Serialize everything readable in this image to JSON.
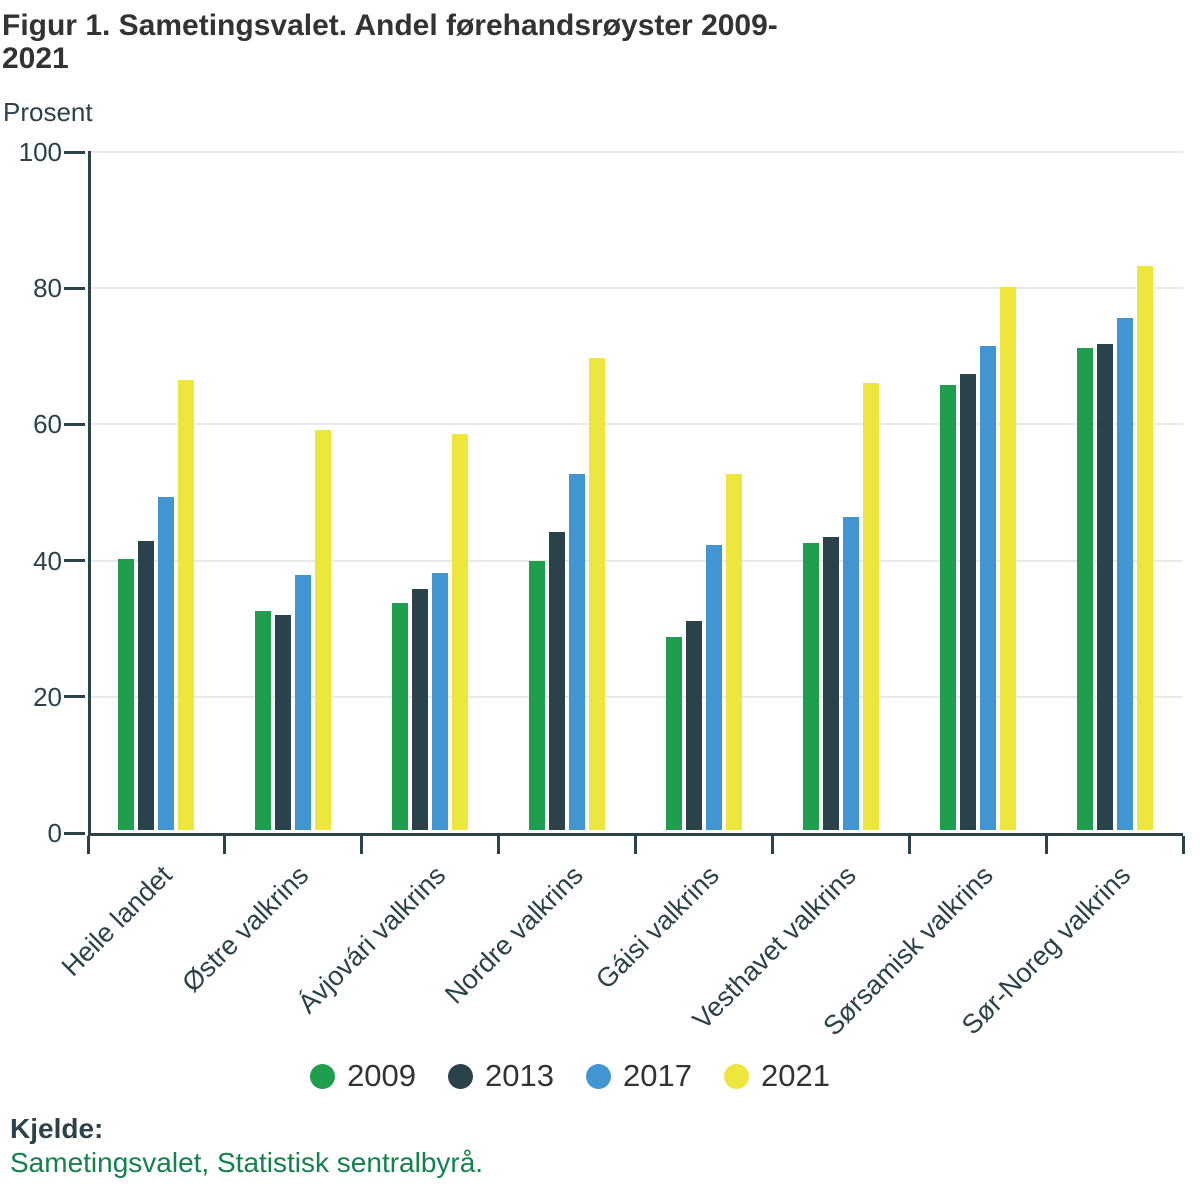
{
  "title": {
    "line1": "Figur 1. Sametingsvalet. Andel førehandsrøyster 2009-",
    "line2": "2021"
  },
  "y_axis_label": "Prosent",
  "footer": {
    "label": "Kjelde:",
    "source_text": "Sametingsvalet, Statistisk sentralbyrå."
  },
  "colors": {
    "title_text": "#333333",
    "axis_and_labels": "#2c424a",
    "gridline": "#e9e9e9",
    "source_link_green": "#15814f",
    "series_2009": "#1f9e4d",
    "series_2013": "#2a4249",
    "series_2017": "#4196d2",
    "series_2021": "#ede63c"
  },
  "chart_data": {
    "type": "bar",
    "title": "Figur 1. Sametingsvalet. Andel førehandsrøyster 2009-2021",
    "xlabel": "",
    "ylabel": "Prosent",
    "ylim": [
      0,
      100
    ],
    "ytick_step": 20,
    "yticks": [
      0,
      20,
      40,
      60,
      80,
      100
    ],
    "grid": true,
    "legend_position": "bottom",
    "categories": [
      "Heile landet",
      "Østre valkrins",
      "Ávjovári valkrins",
      "Nordre valkrins",
      "Gáisi valkrins",
      "Vesthavet valkrins",
      "Sørsamisk valkrins",
      "Sør-Noreg valkrins"
    ],
    "series": [
      {
        "name": "2009",
        "color": "#1f9e4d",
        "values": [
          39.8,
          32.2,
          33.3,
          39.5,
          28.4,
          42.1,
          65.4,
          70.8
        ]
      },
      {
        "name": "2013",
        "color": "#2a4249",
        "values": [
          42.4,
          31.6,
          35.4,
          43.8,
          30.7,
          43.1,
          66.9,
          71.4
        ]
      },
      {
        "name": "2017",
        "color": "#4196d2",
        "values": [
          48.9,
          37.5,
          37.7,
          52.3,
          41.9,
          46.0,
          71.1,
          75.2
        ]
      },
      {
        "name": "2021",
        "color": "#ede63c",
        "values": [
          66.1,
          58.8,
          58.2,
          69.3,
          52.3,
          65.7,
          79.7,
          82.8
        ]
      }
    ]
  }
}
